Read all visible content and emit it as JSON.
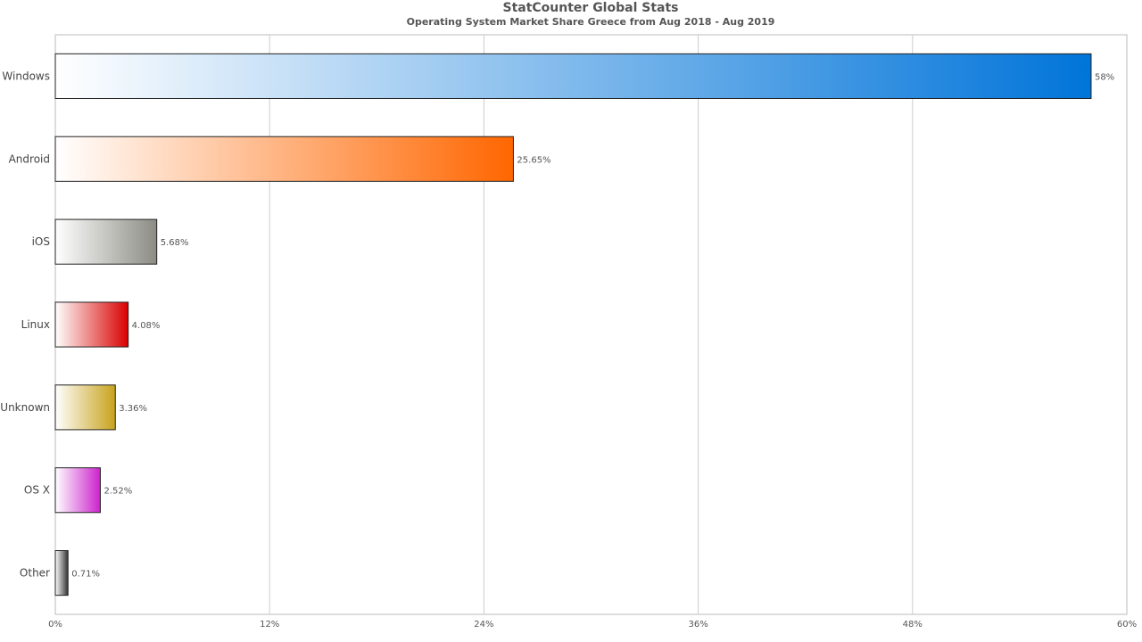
{
  "chart_data": {
    "type": "bar",
    "orientation": "horizontal",
    "title": "StatCounter Global Stats",
    "subtitle": "Operating System Market Share Greece from Aug 2018 - Aug 2019",
    "xlabel": "",
    "ylabel": "",
    "xlim": [
      0,
      60
    ],
    "ticks": [
      0,
      12,
      24,
      36,
      48,
      60
    ],
    "tick_labels": [
      "0%",
      "12%",
      "24%",
      "36%",
      "48%",
      "60%"
    ],
    "grid": true,
    "legend": "none",
    "categories": [
      "Windows",
      "Android",
      "iOS",
      "Linux",
      "Unknown",
      "OS X",
      "Other"
    ],
    "values": [
      58,
      25.65,
      5.68,
      4.08,
      3.36,
      2.52,
      0.71
    ],
    "data_labels": [
      "58%",
      "25.65%",
      "5.68%",
      "4.08%",
      "3.36%",
      "2.52%",
      "0.71%"
    ],
    "colors": [
      "#0074d9",
      "#ff6600",
      "#8c8c84",
      "#d90000",
      "#c8a21c",
      "#cc22cc",
      "#333333"
    ]
  }
}
